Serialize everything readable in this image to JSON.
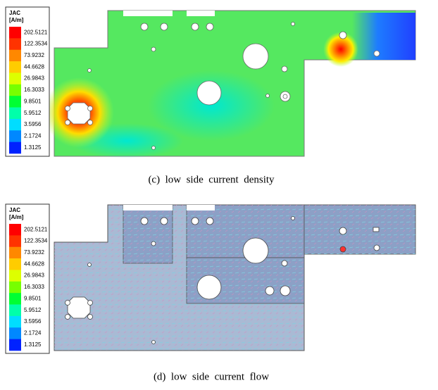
{
  "panels": [
    {
      "legend": {
        "title": "JAC",
        "unit": "[A/m]",
        "labels": [
          "202.5121",
          "122.3534",
          "73.9232",
          "44.6628",
          "26.9843",
          "16.3033",
          "9.8501",
          "5.9512",
          "3.5956",
          "2.1724",
          "1.3125"
        ]
      },
      "caption": "(c)  low  side  current  density"
    },
    {
      "legend": {
        "title": "JAC",
        "unit": "[A/m]",
        "labels": [
          "202.5121",
          "122.3534",
          "73.9232",
          "44.6628",
          "26.9843",
          "16.3033",
          "9.8501",
          "5.9512",
          "3.5956",
          "2.1724",
          "1.3125"
        ]
      },
      "caption": "(d)  low  side  current  flow"
    }
  ]
}
